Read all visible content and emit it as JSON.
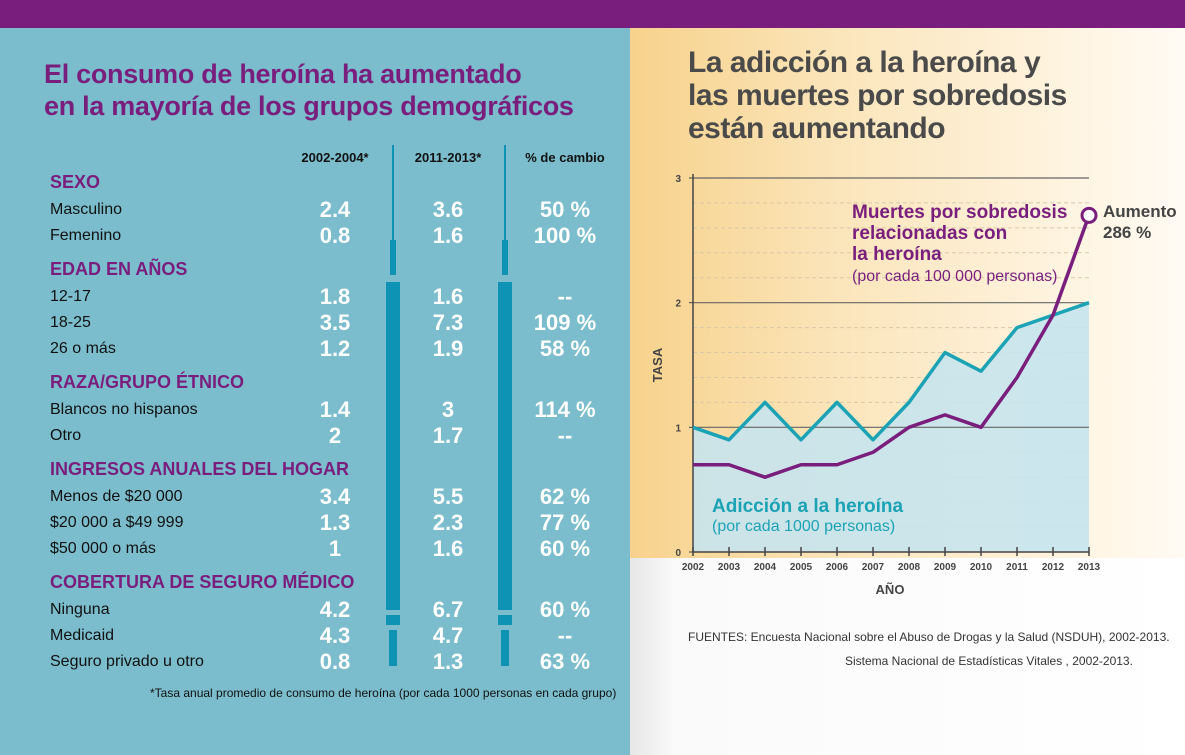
{
  "colors": {
    "purple": "#7a1e7e",
    "teal": "#1ba3b5",
    "panel": "#7bbdcc",
    "fill": "#c6e4ee"
  },
  "left": {
    "title_line1": "El consumo de heroína ha aumentado",
    "title_line2": "en la mayoría de los grupos demográficos",
    "columns": [
      "2002-2004*",
      "2011-2013*",
      "% de cambio"
    ],
    "sections": [
      {
        "title": "SEXO",
        "rows": [
          [
            "Masculino",
            "2.4",
            "3.6",
            "50 %"
          ],
          [
            "Femenino",
            "0.8",
            "1.6",
            "100 %"
          ]
        ]
      },
      {
        "title": "EDAD EN AÑOS",
        "rows": [
          [
            "12-17",
            "1.8",
            "1.6",
            "--"
          ],
          [
            "18-25",
            "3.5",
            "7.3",
            "109 %"
          ],
          [
            "26 o más",
            "1.2",
            "1.9",
            "58 %"
          ]
        ]
      },
      {
        "title": "RAZA/GRUPO ÉTNICO",
        "rows": [
          [
            "Blancos no hispanos",
            "1.4",
            "3",
            "114 %"
          ],
          [
            "Otro",
            "2",
            "1.7",
            "--"
          ]
        ]
      },
      {
        "title": "INGRESOS ANUALES DEL HOGAR",
        "rows": [
          [
            "Menos de $20 000",
            "3.4",
            "5.5",
            "62 %"
          ],
          [
            "$20 000 a $49 999",
            "1.3",
            "2.3",
            "77 %"
          ],
          [
            "$50 000 o más",
            "1",
            "1.6",
            "60 %"
          ]
        ]
      },
      {
        "title": "COBERTURA DE SEGURO MÉDICO",
        "rows": [
          [
            "Ninguna",
            "4.2",
            "6.7",
            "60 %"
          ],
          [
            "Medicaid",
            "4.3",
            "4.7",
            "--"
          ],
          [
            "Seguro privado u otro",
            "0.8",
            "1.3",
            "63 %"
          ]
        ]
      }
    ],
    "footnote": "*Tasa anual promedio de consumo de heroína (por cada 1000 personas en cada grupo)"
  },
  "right": {
    "title_line1": "La adicción a la heroína y",
    "title_line2": "las muertes por sobredosis",
    "title_line3": "están aumentando",
    "sources_line1": "FUENTES: Encuesta Nacional sobre el Abuso de Drogas y la Salud (NSDUH), 2002-2013.",
    "sources_line2": "Sistema Nacional de Estadísticas Vitales , 2002-2013."
  },
  "chart_data": {
    "type": "line",
    "xlabel": "AÑO",
    "ylabel": "TASA",
    "ylim": [
      0,
      3
    ],
    "yticks": [
      "0",
      "1",
      "2",
      "3"
    ],
    "x": [
      "2002",
      "2003",
      "2004",
      "2005",
      "2006",
      "2007",
      "2008",
      "2009",
      "2010",
      "2011",
      "2012",
      "2013"
    ],
    "grid": true,
    "series": [
      {
        "name": "Adicción a la heroína",
        "subtitle": "(por cada 1000 personas)",
        "color": "#1ba3b5",
        "area": true,
        "values": [
          1.0,
          0.9,
          1.2,
          0.9,
          1.2,
          0.9,
          1.2,
          1.6,
          1.45,
          1.8,
          1.9,
          2.0
        ]
      },
      {
        "name": "Muertes por sobredosis relacionadas con la heroína",
        "name_lines": [
          "Muertes por sobredosis",
          "relacionadas con",
          "la heroína"
        ],
        "subtitle": "(por cada 100 000 personas)",
        "color": "#7a1e7e",
        "values": [
          0.7,
          0.7,
          0.6,
          0.7,
          0.7,
          0.8,
          1.0,
          1.1,
          1.0,
          1.4,
          1.9,
          2.7
        ]
      }
    ],
    "annotation": {
      "line1": "Aumento",
      "line2": "286 %"
    }
  }
}
